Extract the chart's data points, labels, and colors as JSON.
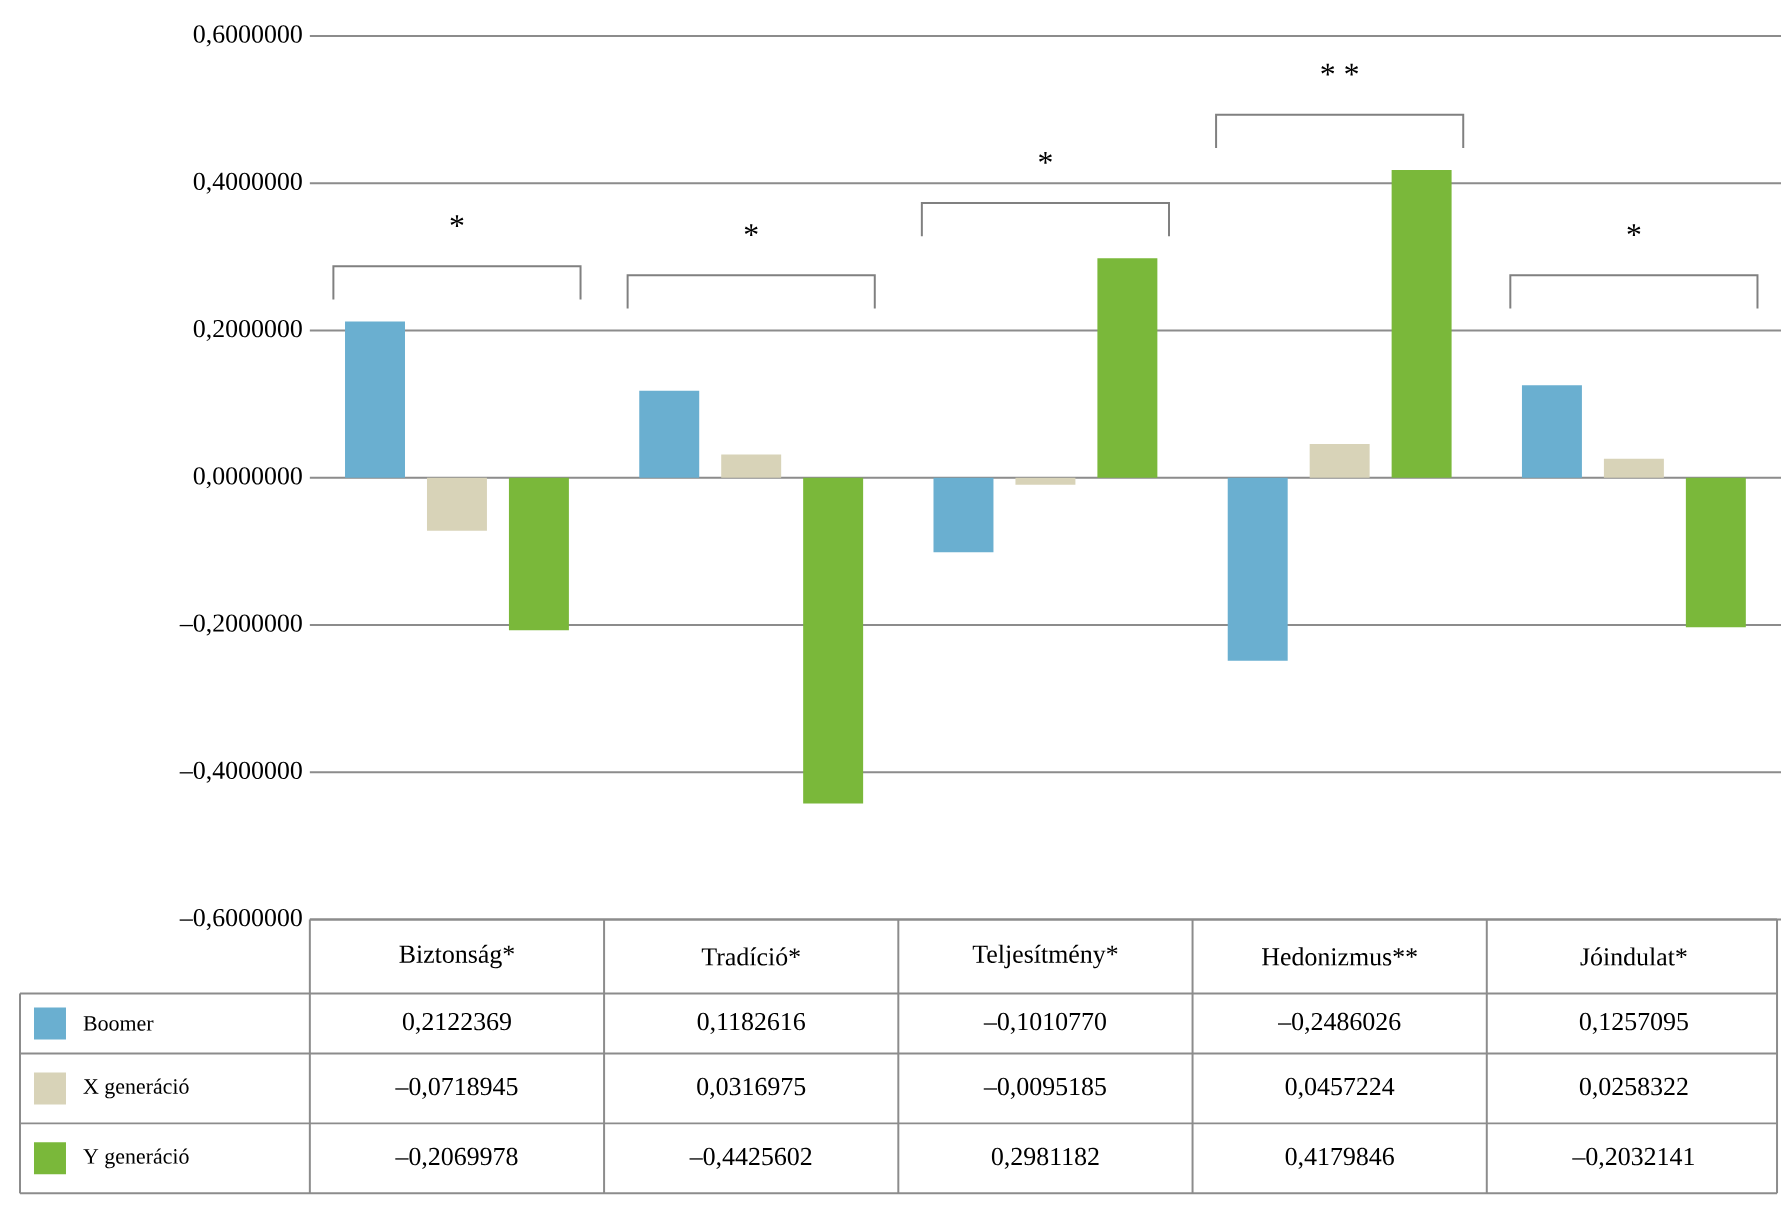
{
  "chart_data": {
    "type": "bar",
    "categories": [
      "Biztonság*",
      "Tradíció*",
      "Teljesítmény*",
      "Hedonizmus**",
      "Jóindulat*"
    ],
    "series": [
      {
        "name": "Boomer",
        "color": "#6aafd0",
        "values": [
          0.2122369,
          0.1182616,
          -0.101077,
          -0.2486026,
          0.1257095
        ],
        "value_labels": [
          "0,2122369",
          "0,1182616",
          "–0,1010770",
          "–0,2486026",
          "0,1257095"
        ]
      },
      {
        "name": "X generáció",
        "color": "#d8d3b8",
        "values": [
          -0.0718945,
          0.0316975,
          -0.0095185,
          0.0457224,
          0.0258322
        ],
        "value_labels": [
          "–0,0718945",
          "0,0316975",
          "–0,0095185",
          "0,0457224",
          "0,0258322"
        ]
      },
      {
        "name": "Y generáció",
        "color": "#7ab83a",
        "values": [
          -0.2069978,
          -0.4425602,
          0.2981182,
          0.4179846,
          -0.2032141
        ],
        "value_labels": [
          "–0,2069978",
          "–0,4425602",
          "0,2981182",
          "0,4179846",
          "–0,2032141"
        ]
      }
    ],
    "ylim": [
      -0.6,
      0.6
    ],
    "yticks": [
      {
        "value": -0.6,
        "label": "–0,6000000"
      },
      {
        "value": -0.4,
        "label": "–0,4000000"
      },
      {
        "value": -0.2,
        "label": "–0,2000000"
      },
      {
        "value": 0,
        "label": "0,0000000"
      },
      {
        "value": 0.2,
        "label": "0,2000000"
      },
      {
        "value": 0.4,
        "label": "0,4000000"
      },
      {
        "value": 0.6,
        "label": "0,6000000"
      }
    ],
    "grid": "y",
    "legend": "bottom left",
    "annotations": [
      "*",
      "*",
      "*",
      "* *",
      "*"
    ]
  }
}
